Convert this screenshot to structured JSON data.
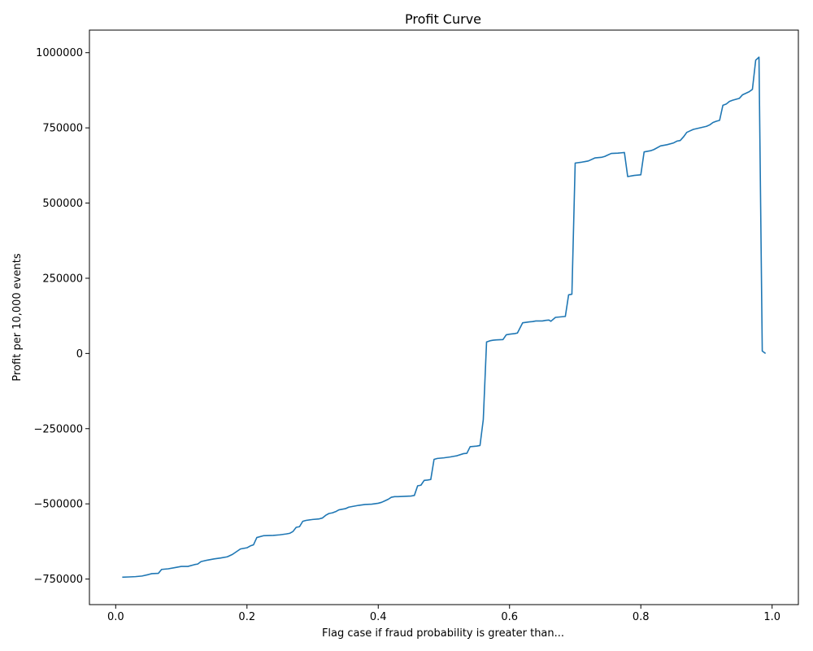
{
  "chart_data": {
    "type": "line",
    "title": "Profit Curve",
    "xlabel": "Flag case if fraud probability is greater than...",
    "ylabel": "Profit per 10,000 events",
    "xlim": [
      -0.04,
      1.04
    ],
    "ylim": [
      -835000,
      1075000
    ],
    "x_ticks": [
      0.0,
      0.2,
      0.4,
      0.6,
      0.8,
      1.0
    ],
    "x_tick_labels": [
      "0.0",
      "0.2",
      "0.4",
      "0.6",
      "0.8",
      "1.0"
    ],
    "y_ticks": [
      -750000,
      -500000,
      -250000,
      0,
      250000,
      500000,
      750000,
      1000000
    ],
    "y_tick_labels": [
      "−750000",
      "−500000",
      "−250000",
      "0",
      "250000",
      "500000",
      "750000",
      "1000000"
    ],
    "grid": false,
    "legend": "none",
    "series": [
      {
        "color": "#1f77b4",
        "x": [
          0.01,
          0.02,
          0.03,
          0.04,
          0.05,
          0.055,
          0.065,
          0.07,
          0.08,
          0.09,
          0.1,
          0.11,
          0.12,
          0.125,
          0.13,
          0.14,
          0.15,
          0.16,
          0.17,
          0.178,
          0.19,
          0.2,
          0.205,
          0.21,
          0.215,
          0.225,
          0.24,
          0.25,
          0.26,
          0.265,
          0.27,
          0.275,
          0.28,
          0.285,
          0.29,
          0.3,
          0.31,
          0.315,
          0.32,
          0.325,
          0.33,
          0.335,
          0.34,
          0.35,
          0.355,
          0.36,
          0.37,
          0.38,
          0.39,
          0.4,
          0.405,
          0.41,
          0.415,
          0.42,
          0.425,
          0.43,
          0.44,
          0.45,
          0.455,
          0.46,
          0.465,
          0.47,
          0.475,
          0.48,
          0.485,
          0.49,
          0.5,
          0.51,
          0.515,
          0.52,
          0.53,
          0.535,
          0.54,
          0.545,
          0.55,
          0.555,
          0.56,
          0.565,
          0.57,
          0.575,
          0.58,
          0.59,
          0.595,
          0.6,
          0.608,
          0.612,
          0.62,
          0.63,
          0.635,
          0.64,
          0.65,
          0.655,
          0.66,
          0.663,
          0.67,
          0.68,
          0.685,
          0.69,
          0.695,
          0.7,
          0.71,
          0.715,
          0.72,
          0.73,
          0.74,
          0.745,
          0.75,
          0.755,
          0.765,
          0.775,
          0.78,
          0.79,
          0.8,
          0.805,
          0.815,
          0.82,
          0.83,
          0.84,
          0.85,
          0.855,
          0.86,
          0.865,
          0.87,
          0.875,
          0.88,
          0.89,
          0.9,
          0.905,
          0.91,
          0.915,
          0.92,
          0.925,
          0.93,
          0.935,
          0.94,
          0.945,
          0.95,
          0.955,
          0.96,
          0.965,
          0.97,
          0.975,
          0.98,
          0.985,
          0.99
        ],
        "y": [
          -744000,
          -743000,
          -742000,
          -740000,
          -735000,
          -732000,
          -731000,
          -718000,
          -716000,
          -712000,
          -708000,
          -708000,
          -702000,
          -700000,
          -692000,
          -687000,
          -683000,
          -680000,
          -676000,
          -668000,
          -650000,
          -646000,
          -640000,
          -636000,
          -612000,
          -606000,
          -605000,
          -603000,
          -600000,
          -598000,
          -592000,
          -578000,
          -576000,
          -558000,
          -555000,
          -552000,
          -550000,
          -547000,
          -538000,
          -532000,
          -530000,
          -526000,
          -520000,
          -516000,
          -511000,
          -509000,
          -505000,
          -502000,
          -501000,
          -498000,
          -495000,
          -490000,
          -485000,
          -478000,
          -476000,
          -476000,
          -475000,
          -474000,
          -472000,
          -440000,
          -438000,
          -422000,
          -421000,
          -419000,
          -352000,
          -349000,
          -347000,
          -344000,
          -342000,
          -340000,
          -333000,
          -332000,
          -310000,
          -309000,
          -308000,
          -306000,
          -220000,
          38000,
          42000,
          44000,
          45000,
          46000,
          62000,
          64000,
          66000,
          68000,
          102000,
          105000,
          106000,
          108000,
          108000,
          110000,
          111000,
          107000,
          120000,
          122000,
          123000,
          195000,
          197000,
          633000,
          636000,
          638000,
          640000,
          650000,
          652000,
          655000,
          660000,
          665000,
          666000,
          668000,
          588000,
          592000,
          594000,
          670000,
          674000,
          678000,
          690000,
          694000,
          700000,
          706000,
          708000,
          720000,
          735000,
          740000,
          745000,
          750000,
          755000,
          760000,
          768000,
          772000,
          775000,
          825000,
          829000,
          838000,
          842000,
          845000,
          848000,
          860000,
          865000,
          870000,
          878000,
          975000,
          985000,
          8000,
          0
        ]
      }
    ]
  }
}
